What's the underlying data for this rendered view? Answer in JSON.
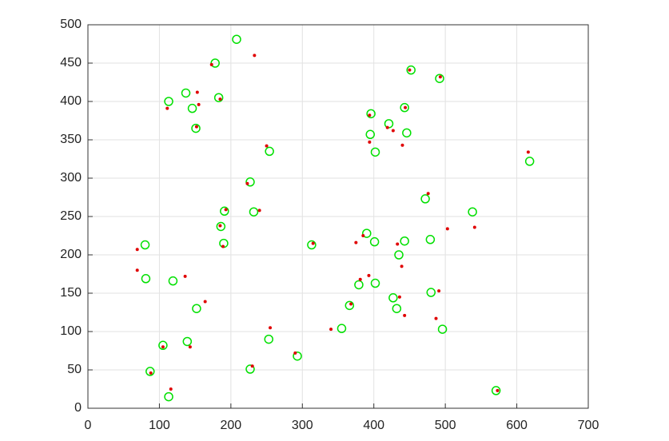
{
  "chart_data": {
    "type": "scatter",
    "xlim": [
      0,
      700
    ],
    "xticks": [
      0,
      100,
      200,
      300,
      400,
      500,
      600,
      700
    ],
    "ylim": [
      0,
      500
    ],
    "yticks": [
      0,
      50,
      100,
      150,
      200,
      250,
      300,
      350,
      400,
      450,
      500
    ],
    "grid": true,
    "series": [
      {
        "color": "#00e000",
        "marker": "open-circle",
        "x": [
          208,
          178,
          113,
          137,
          146,
          183,
          151,
          396,
          421,
          443,
          395,
          446,
          402,
          452,
          492,
          254,
          227,
          618,
          472,
          538,
          191,
          232,
          186,
          190,
          80,
          313,
          390,
          401,
          443,
          479,
          435,
          81,
          119,
          379,
          402,
          480,
          427,
          152,
          366,
          432,
          355,
          496,
          105,
          139,
          253,
          293,
          87,
          227,
          113,
          571
        ],
        "values": [
          481,
          450,
          400,
          411,
          391,
          405,
          365,
          384,
          371,
          392,
          357,
          359,
          334,
          441,
          430,
          335,
          295,
          322,
          273,
          256,
          257,
          256,
          237,
          215,
          213,
          213,
          228,
          217,
          218,
          220,
          200,
          169,
          166,
          161,
          163,
          151,
          144,
          130,
          134,
          130,
          104,
          103,
          82,
          87,
          90,
          68,
          48,
          51,
          15,
          23
        ]
      },
      {
        "color": "#e00000",
        "marker": "dot",
        "x": [
          233,
          173,
          153,
          111,
          155,
          185,
          152,
          394,
          419,
          444,
          394,
          427,
          440,
          450,
          493,
          250,
          223,
          616,
          476,
          541,
          193,
          240,
          185,
          189,
          69,
          315,
          375,
          385,
          433,
          503,
          439,
          69,
          136,
          164,
          381,
          393,
          491,
          436,
          368,
          443,
          487,
          340,
          255,
          143,
          290,
          105,
          88,
          230,
          116,
          573
        ],
        "values": [
          460,
          448,
          412,
          391,
          396,
          403,
          367,
          382,
          366,
          392,
          347,
          362,
          343,
          441,
          432,
          342,
          293,
          334,
          280,
          236,
          259,
          258,
          238,
          211,
          207,
          215,
          216,
          225,
          214,
          234,
          185,
          180,
          172,
          139,
          168,
          173,
          153,
          145,
          136,
          121,
          117,
          103,
          105,
          80,
          72,
          80,
          46,
          55,
          25,
          23
        ]
      }
    ]
  }
}
